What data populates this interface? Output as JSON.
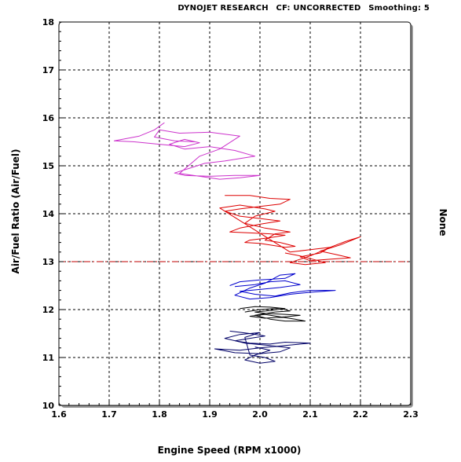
{
  "header": {
    "brand": "DYNOJET RESEARCH",
    "correction": "CF: UNCORRECTED",
    "smoothing": "Smoothing: 5"
  },
  "chart_data": {
    "type": "line",
    "xlabel": "Engine Speed (RPM x1000)",
    "ylabel": "Air/Fuel Ratio (Air/Fuel)",
    "right_label": "None",
    "xlim": [
      1.6,
      2.3
    ],
    "ylim": [
      10,
      18
    ],
    "x_ticks": [
      "1.6",
      "1.7",
      "1.8",
      "1.9",
      "2.0",
      "2.1",
      "2.2",
      "2.3"
    ],
    "y_ticks": [
      "10",
      "11",
      "12",
      "13",
      "14",
      "15",
      "16",
      "17",
      "18"
    ],
    "grid": true,
    "reference_line": {
      "y": 13.0,
      "color": "#c00000",
      "style": "dash-dot"
    },
    "series": [
      {
        "color": "#cc33cc",
        "values": [
          [
            1.81,
            15.9
          ],
          [
            1.79,
            15.75
          ],
          [
            1.76,
            15.62
          ],
          [
            1.71,
            15.52
          ],
          [
            1.75,
            15.5
          ],
          [
            1.8,
            15.45
          ],
          [
            1.85,
            15.4
          ],
          [
            1.88,
            15.48
          ],
          [
            1.85,
            15.55
          ],
          [
            1.82,
            15.45
          ],
          [
            1.85,
            15.35
          ],
          [
            1.9,
            15.4
          ],
          [
            1.95,
            15.32
          ],
          [
            1.99,
            15.2
          ],
          [
            1.93,
            15.1
          ],
          [
            1.89,
            15.05
          ],
          [
            1.86,
            14.95
          ],
          [
            1.83,
            14.85
          ],
          [
            1.85,
            14.8
          ],
          [
            1.9,
            14.78
          ],
          [
            1.95,
            14.8
          ],
          [
            2.0,
            14.8
          ],
          [
            1.96,
            14.75
          ],
          [
            1.92,
            14.72
          ],
          [
            1.88,
            14.78
          ],
          [
            1.84,
            14.84
          ],
          [
            1.88,
            15.2
          ],
          [
            1.92,
            15.35
          ],
          [
            1.96,
            15.62
          ],
          [
            1.9,
            15.7
          ],
          [
            1.84,
            15.68
          ],
          [
            1.8,
            15.75
          ],
          [
            1.79,
            15.6
          ],
          [
            1.83,
            15.52
          ],
          [
            1.87,
            15.5
          ]
        ]
      },
      {
        "color": "#dd0000",
        "values": [
          [
            1.93,
            14.38
          ],
          [
            1.98,
            14.38
          ],
          [
            2.02,
            14.32
          ],
          [
            2.06,
            14.3
          ],
          [
            2.04,
            14.2
          ],
          [
            2.0,
            14.15
          ],
          [
            1.96,
            14.1
          ],
          [
            1.93,
            14.05
          ],
          [
            1.96,
            13.95
          ],
          [
            2.0,
            13.9
          ],
          [
            2.04,
            13.85
          ],
          [
            2.0,
            13.78
          ],
          [
            1.96,
            13.7
          ],
          [
            1.94,
            13.62
          ],
          [
            1.98,
            13.6
          ],
          [
            2.02,
            13.58
          ],
          [
            2.05,
            13.55
          ],
          [
            2.02,
            13.5
          ],
          [
            1.98,
            13.45
          ],
          [
            1.97,
            13.4
          ],
          [
            2.0,
            13.38
          ],
          [
            2.05,
            13.3
          ],
          [
            2.07,
            13.32
          ],
          [
            2.04,
            13.4
          ],
          [
            2.01,
            13.45
          ],
          [
            2.03,
            13.58
          ],
          [
            2.06,
            13.62
          ],
          [
            2.01,
            13.7
          ],
          [
            1.97,
            13.8
          ],
          [
            1.99,
            13.95
          ],
          [
            2.03,
            14.05
          ],
          [
            2.01,
            14.1
          ],
          [
            1.96,
            14.18
          ],
          [
            1.92,
            14.12
          ],
          [
            2.06,
            13.2
          ],
          [
            2.1,
            13.25
          ],
          [
            2.14,
            13.3
          ],
          [
            2.12,
            13.18
          ],
          [
            2.08,
            13.1
          ],
          [
            2.1,
            13.02
          ],
          [
            2.14,
            13.05
          ],
          [
            2.18,
            13.08
          ],
          [
            2.15,
            13.15
          ],
          [
            2.12,
            13.22
          ],
          [
            2.16,
            13.35
          ],
          [
            2.2,
            13.52
          ],
          [
            2.17,
            13.42
          ],
          [
            2.14,
            13.3
          ],
          [
            2.1,
            13.12
          ],
          [
            2.06,
            12.98
          ],
          [
            2.09,
            12.94
          ],
          [
            2.13,
            12.98
          ],
          [
            2.08,
            13.12
          ],
          [
            2.05,
            13.18
          ]
        ]
      },
      {
        "color": "#0000cc",
        "values": [
          [
            1.95,
            12.48
          ],
          [
            1.99,
            12.52
          ],
          [
            2.02,
            12.58
          ],
          [
            2.05,
            12.6
          ],
          [
            2.08,
            12.52
          ],
          [
            2.04,
            12.46
          ],
          [
            2.0,
            12.42
          ],
          [
            1.96,
            12.38
          ],
          [
            1.99,
            12.32
          ],
          [
            2.03,
            12.28
          ],
          [
            2.06,
            12.35
          ],
          [
            2.1,
            12.4
          ],
          [
            2.15,
            12.4
          ],
          [
            2.1,
            12.36
          ],
          [
            2.06,
            12.32
          ],
          [
            2.02,
            12.25
          ],
          [
            1.98,
            12.22
          ],
          [
            1.95,
            12.3
          ],
          [
            1.98,
            12.45
          ],
          [
            2.01,
            12.55
          ],
          [
            2.04,
            12.72
          ],
          [
            2.07,
            12.75
          ],
          [
            2.05,
            12.65
          ],
          [
            2.0,
            12.62
          ],
          [
            1.96,
            12.58
          ],
          [
            1.94,
            12.5
          ]
        ]
      },
      {
        "color": "#000000",
        "values": [
          [
            1.96,
            12.02
          ],
          [
            1.99,
            12.06
          ],
          [
            2.02,
            12.05
          ],
          [
            2.05,
            12.02
          ],
          [
            2.02,
            11.98
          ],
          [
            1.99,
            11.95
          ],
          [
            2.01,
            11.92
          ],
          [
            2.05,
            11.9
          ],
          [
            2.08,
            11.88
          ],
          [
            2.05,
            11.85
          ],
          [
            2.01,
            11.82
          ],
          [
            1.98,
            11.86
          ],
          [
            2.01,
            11.9
          ],
          [
            2.04,
            11.85
          ],
          [
            2.07,
            11.8
          ],
          [
            2.09,
            11.76
          ],
          [
            2.05,
            11.76
          ],
          [
            2.02,
            11.8
          ],
          [
            1.99,
            11.88
          ],
          [
            2.03,
            11.95
          ],
          [
            2.06,
            11.97
          ],
          [
            2.04,
            12.03
          ],
          [
            2.0,
            12.0
          ],
          [
            1.97,
            11.95
          ]
        ]
      },
      {
        "color": "#000066",
        "values": [
          [
            1.94,
            11.55
          ],
          [
            1.98,
            11.5
          ],
          [
            2.01,
            11.45
          ],
          [
            1.98,
            11.4
          ],
          [
            1.95,
            11.35
          ],
          [
            1.98,
            11.3
          ],
          [
            2.02,
            11.28
          ],
          [
            2.05,
            11.32
          ],
          [
            2.1,
            11.3
          ],
          [
            2.05,
            11.25
          ],
          [
            2.0,
            11.2
          ],
          [
            1.96,
            11.15
          ],
          [
            1.91,
            11.18
          ],
          [
            1.95,
            11.1
          ],
          [
            2.0,
            11.08
          ],
          [
            2.04,
            11.12
          ],
          [
            2.06,
            11.2
          ],
          [
            2.02,
            11.25
          ],
          [
            1.97,
            11.3
          ],
          [
            1.93,
            11.4
          ],
          [
            1.96,
            11.48
          ],
          [
            2.0,
            11.52
          ],
          [
            1.97,
            11.42
          ],
          [
            1.98,
            11.05
          ],
          [
            2.01,
            11.0
          ],
          [
            2.03,
            10.92
          ],
          [
            2.0,
            10.88
          ],
          [
            1.97,
            10.95
          ],
          [
            1.99,
            11.05
          ],
          [
            2.02,
            11.15
          ],
          [
            1.99,
            11.22
          ]
        ]
      }
    ]
  }
}
